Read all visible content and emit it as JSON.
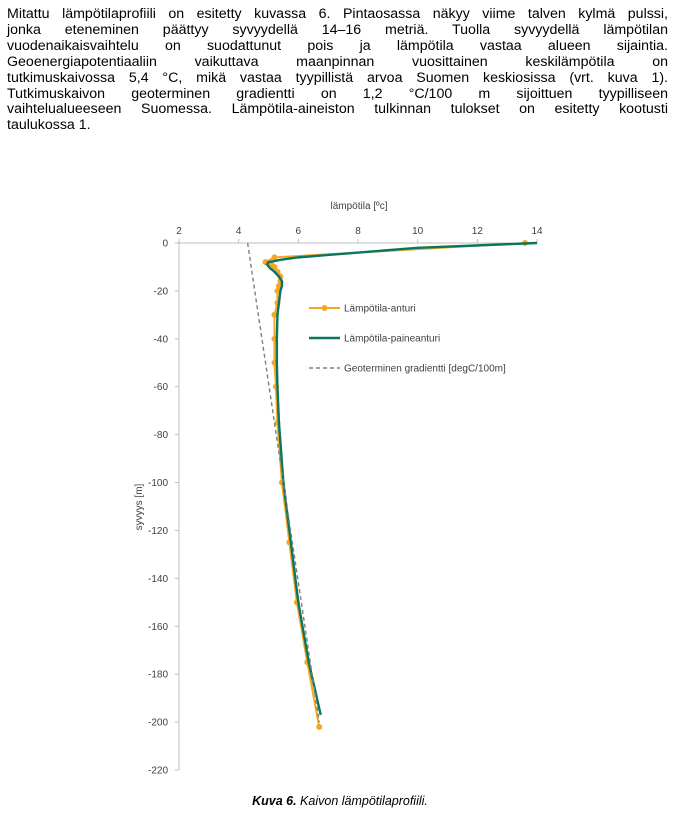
{
  "paragraph_lines": [
    "Mitattu lämpötilaprofiili on esitetty kuvassa 6. Pintaosassa näkyy viime talven kylmä pulssi,",
    "jonka eteneminen päättyy syvyydellä 14–16 metriä. Tuolla syvyydellä lämpötilan",
    "vuodenaikaisvaihtelu on suodattunut pois ja lämpötila vastaa alueen sijaintia.",
    "Geoenergiapotentiaaliin vaikuttava maanpinnan vuosittainen keskilämpötila on",
    "tutkimuskaivossa 5,4 °C, mikä vastaa tyypillistä arvoa Suomen keskiosissa (vrt. kuva 1).",
    "Tutkimuskaivon geoterminen gradientti on 1,2 °C/100 m sijoittuen tyypilliseen",
    "vaihtelualueeseen Suomessa. Lämpötila-aineiston tulkinnan tulokset on esitetty kootusti",
    "taulukossa 1."
  ],
  "caption": {
    "label": "Kuva 6.",
    "text": "Kaivon lämpötilaprofiili."
  },
  "chart_data": {
    "type": "line",
    "xlabel": "lämpötila [ºc]",
    "ylabel": "syvyys [m]",
    "xlim": [
      2,
      14
    ],
    "ylim": [
      -220,
      0
    ],
    "x_ticks": [
      2,
      4,
      6,
      8,
      10,
      12,
      14
    ],
    "y_ticks": [
      0,
      -20,
      -40,
      -60,
      -80,
      -100,
      -120,
      -140,
      -160,
      -180,
      -200,
      -220
    ],
    "x_axis_position": "top",
    "grid": false,
    "legend_position": "right",
    "series": [
      {
        "name": "Lämpötila-anturi",
        "color": "#f5a623",
        "style": "line-markers",
        "points": [
          [
            13.6,
            0
          ],
          [
            5.2,
            -6
          ],
          [
            4.9,
            -8
          ],
          [
            5.1,
            -9
          ],
          [
            5.2,
            -10
          ],
          [
            5.3,
            -12
          ],
          [
            5.4,
            -14
          ],
          [
            5.4,
            -16
          ],
          [
            5.35,
            -18
          ],
          [
            5.3,
            -20
          ],
          [
            5.3,
            -25
          ],
          [
            5.2,
            -30
          ],
          [
            5.2,
            -40
          ],
          [
            5.2,
            -50
          ],
          [
            5.25,
            -60
          ],
          [
            5.3,
            -75
          ],
          [
            5.45,
            -100
          ],
          [
            5.7,
            -125
          ],
          [
            5.95,
            -150
          ],
          [
            6.3,
            -175
          ],
          [
            6.7,
            -202
          ]
        ]
      },
      {
        "name": "Lämpötila-paineanturi",
        "color": "#0a7560",
        "style": "line",
        "points": [
          [
            14.0,
            0
          ],
          [
            10.0,
            -2
          ],
          [
            7.0,
            -5
          ],
          [
            6.0,
            -6
          ],
          [
            5.4,
            -7
          ],
          [
            5.0,
            -8
          ],
          [
            4.95,
            -9
          ],
          [
            5.05,
            -10.5
          ],
          [
            5.2,
            -12
          ],
          [
            5.35,
            -14
          ],
          [
            5.45,
            -16
          ],
          [
            5.45,
            -18
          ],
          [
            5.4,
            -20
          ],
          [
            5.35,
            -25
          ],
          [
            5.3,
            -30
          ],
          [
            5.28,
            -40
          ],
          [
            5.28,
            -50
          ],
          [
            5.3,
            -60
          ],
          [
            5.35,
            -75
          ],
          [
            5.5,
            -100
          ],
          [
            5.75,
            -125
          ],
          [
            6.0,
            -150
          ],
          [
            6.35,
            -175
          ],
          [
            6.75,
            -197
          ]
        ]
      },
      {
        "name": "Geoterminen gradientti [degC/100m]",
        "color": "#7f7f7f",
        "style": "dashed",
        "points": [
          [
            4.3,
            0
          ],
          [
            6.7,
            -200
          ]
        ]
      }
    ]
  }
}
